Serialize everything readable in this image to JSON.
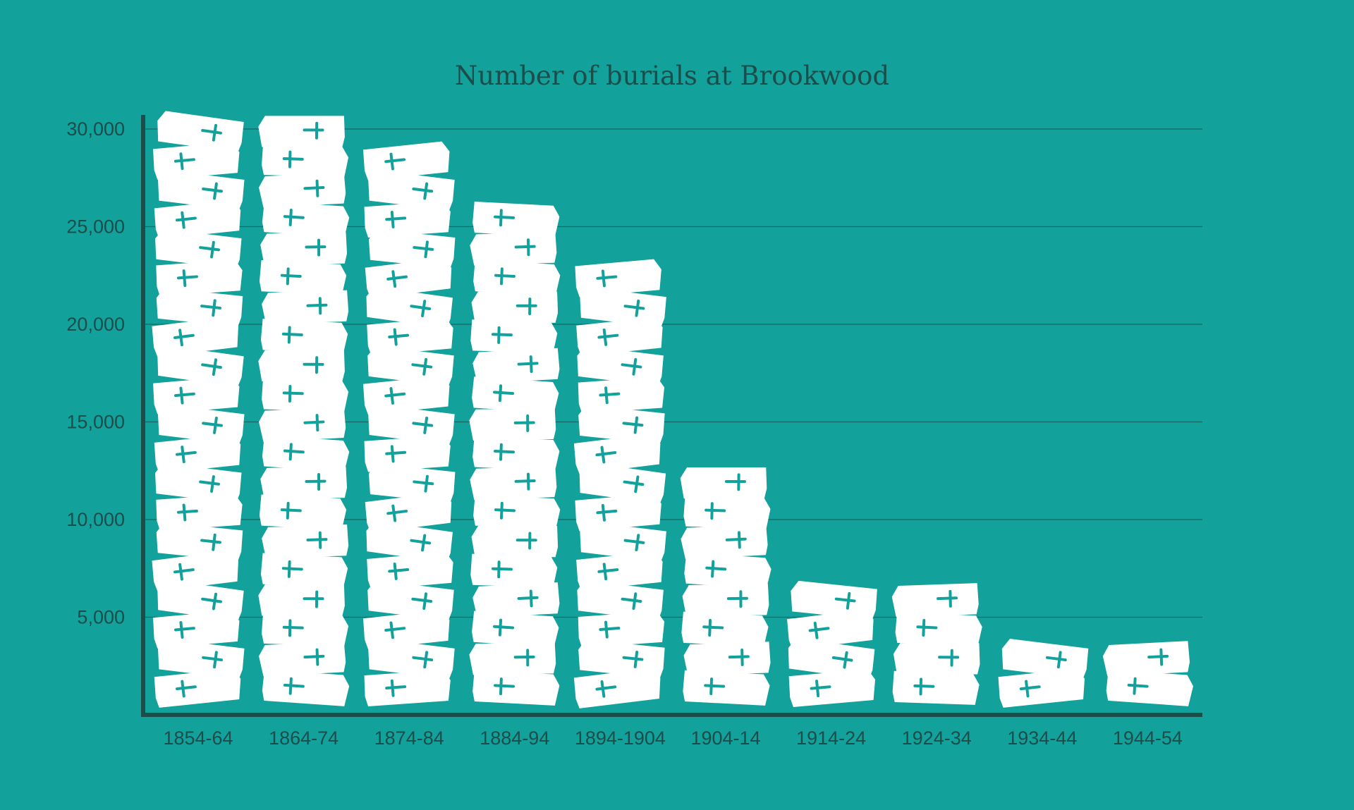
{
  "chart_data": {
    "type": "bar",
    "title": "Number of burials at Brookwood",
    "xlabel": "",
    "ylabel": "",
    "categories": [
      "1854-64",
      "1864-74",
      "1874-84",
      "1884-94",
      "1894-1904",
      "1904-14",
      "1914-24",
      "1924-34",
      "1934-44",
      "1944-54"
    ],
    "values": [
      30000,
      30000,
      28000,
      26000,
      23000,
      11500,
      6000,
      6000,
      3000,
      3000
    ],
    "ylim": [
      0,
      30000
    ],
    "yticks": [
      5000,
      10000,
      15000,
      20000,
      25000,
      30000
    ],
    "ytick_labels": [
      "5,000",
      "10,000",
      "15,000",
      "20,000",
      "25,000",
      "30,000"
    ],
    "unit_per_icon": 1500,
    "grid": true,
    "legend": "none"
  },
  "colors": {
    "background": "#13a19b",
    "coffin": "#ffffff",
    "cross": "#13a19b",
    "text": "#1d4d4b",
    "grid": "#146862"
  },
  "icon": "coffin-with-cross-icon"
}
